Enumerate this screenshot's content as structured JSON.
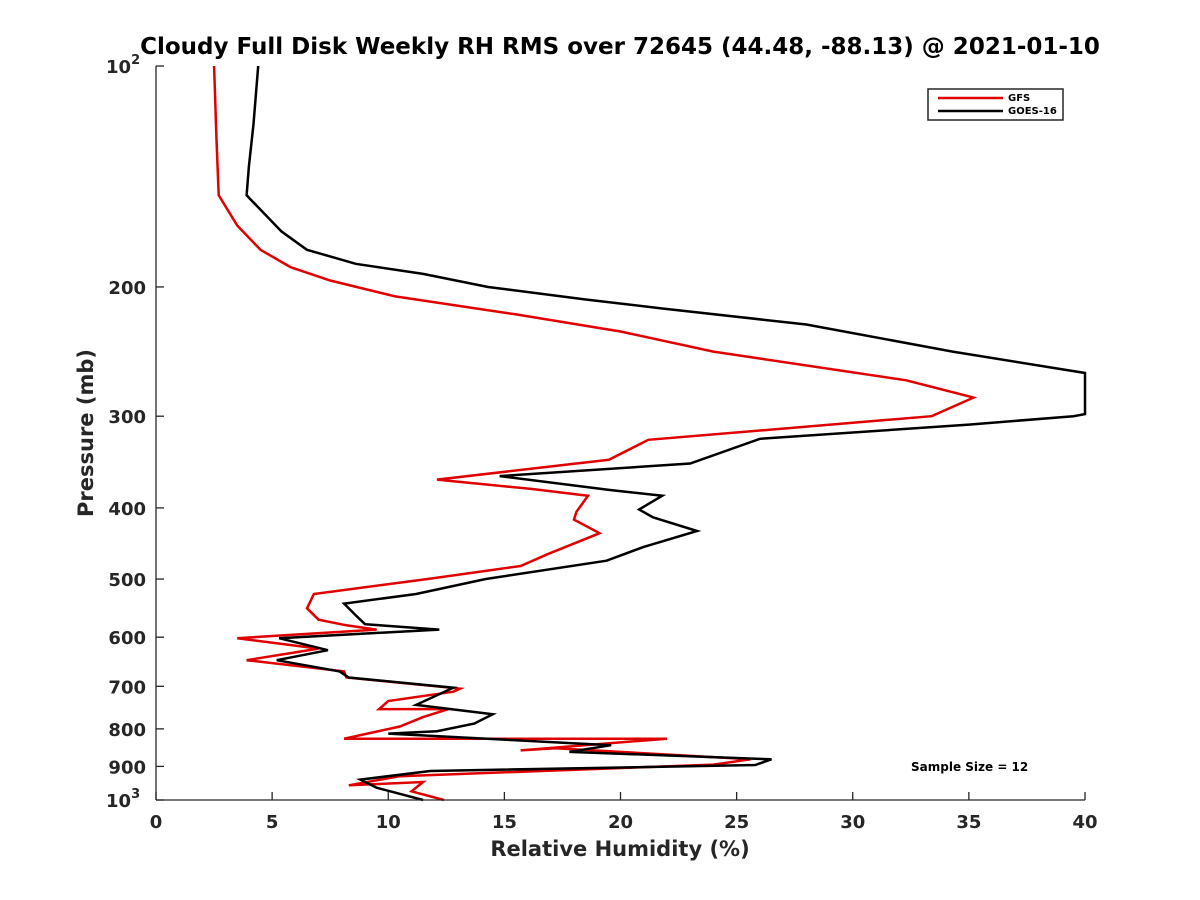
{
  "chart_data": {
    "type": "line",
    "title": "Cloudy Full Disk Weekly RH RMS over 72645 (44.48, -88.13) @ 2021-01-10",
    "xlabel": "Relative Humidity (%)",
    "ylabel": "Pressure (mb)",
    "xlim": [
      0,
      40
    ],
    "ylim": [
      100,
      1000
    ],
    "y_scale": "log",
    "y_reversed": true,
    "grid": false,
    "legend_position": "top-right",
    "x_ticks": [
      "0",
      "5",
      "10",
      "15",
      "20",
      "25",
      "30",
      "35",
      "40"
    ],
    "y_ticks": [
      {
        "value": 100,
        "base": "10",
        "exp": "2"
      },
      {
        "value": 200,
        "label": "200"
      },
      {
        "value": 300,
        "label": "300"
      },
      {
        "value": 400,
        "label": "400"
      },
      {
        "value": 500,
        "label": "500"
      },
      {
        "value": 600,
        "label": "600"
      },
      {
        "value": 700,
        "label": "700"
      },
      {
        "value": 800,
        "label": "800"
      },
      {
        "value": 900,
        "label": "900"
      },
      {
        "value": 1000,
        "base": "10",
        "exp": "3"
      }
    ],
    "annotation": "Sample Size = 12",
    "series": [
      {
        "name": "GFS",
        "color": "#e00000",
        "points": [
          [
            2.5,
            100
          ],
          [
            2.6,
            125
          ],
          [
            2.7,
            150
          ],
          [
            3.5,
            165
          ],
          [
            4.5,
            178
          ],
          [
            5.8,
            188
          ],
          [
            7.5,
            196
          ],
          [
            10.3,
            206
          ],
          [
            15.5,
            218
          ],
          [
            20.0,
            230
          ],
          [
            24.0,
            245
          ],
          [
            32.3,
            268
          ],
          [
            35.2,
            283
          ],
          [
            33.4,
            300
          ],
          [
            21.2,
            323
          ],
          [
            19.5,
            344
          ],
          [
            12.1,
            366
          ],
          [
            16.2,
            377
          ],
          [
            18.6,
            385
          ],
          [
            18.1,
            405
          ],
          [
            18.0,
            415
          ],
          [
            19.1,
            433
          ],
          [
            16.9,
            462
          ],
          [
            15.7,
            480
          ],
          [
            11.7,
            500
          ],
          [
            6.8,
            524
          ],
          [
            6.5,
            548
          ],
          [
            7.0,
            568
          ],
          [
            8.2,
            578
          ],
          [
            9.5,
            586
          ],
          [
            3.5,
            602
          ],
          [
            7.0,
            622
          ],
          [
            3.9,
            645
          ],
          [
            8.1,
            668
          ],
          [
            8.2,
            681
          ],
          [
            13.1,
            705
          ],
          [
            12.8,
            712
          ],
          [
            10.0,
            733
          ],
          [
            9.6,
            752
          ],
          [
            12.6,
            752
          ],
          [
            11.5,
            771
          ],
          [
            10.5,
            794
          ],
          [
            8.1,
            825
          ],
          [
            22.0,
            825
          ],
          [
            15.7,
            856
          ],
          [
            17.2,
            850
          ],
          [
            25.6,
            880
          ],
          [
            24.0,
            895
          ],
          [
            10.5,
            928
          ],
          [
            8.3,
            955
          ],
          [
            11.5,
            945
          ],
          [
            11.0,
            973
          ],
          [
            12.4,
            1000
          ]
        ]
      },
      {
        "name": "GOES-16",
        "color": "#000000",
        "points": [
          [
            4.4,
            100
          ],
          [
            4.2,
            120
          ],
          [
            4.0,
            137
          ],
          [
            3.9,
            150
          ],
          [
            5.4,
            168
          ],
          [
            6.5,
            178
          ],
          [
            8.6,
            186
          ],
          [
            11.5,
            192
          ],
          [
            14.3,
            200
          ],
          [
            18.5,
            208
          ],
          [
            21.8,
            214
          ],
          [
            28.0,
            225
          ],
          [
            34.3,
            245
          ],
          [
            40.0,
            262
          ],
          [
            40.0,
            298
          ],
          [
            39.5,
            300
          ],
          [
            35.0,
            308
          ],
          [
            26.0,
            322
          ],
          [
            23.0,
            348
          ],
          [
            14.8,
            362
          ],
          [
            19.5,
            378
          ],
          [
            21.8,
            385
          ],
          [
            20.8,
            402
          ],
          [
            21.4,
            412
          ],
          [
            23.3,
            430
          ],
          [
            21.0,
            452
          ],
          [
            19.4,
            472
          ],
          [
            14.2,
            500
          ],
          [
            11.2,
            524
          ],
          [
            8.1,
            540
          ],
          [
            8.6,
            560
          ],
          [
            9.0,
            576
          ],
          [
            12.2,
            586
          ],
          [
            5.3,
            602
          ],
          [
            7.4,
            625
          ],
          [
            5.2,
            645
          ],
          [
            7.9,
            668
          ],
          [
            8.3,
            681
          ],
          [
            12.8,
            703
          ],
          [
            11.2,
            742
          ],
          [
            14.5,
            764
          ],
          [
            13.7,
            787
          ],
          [
            12.1,
            806
          ],
          [
            10.0,
            812
          ],
          [
            19.6,
            842
          ],
          [
            17.8,
            860
          ],
          [
            26.5,
            880
          ],
          [
            25.8,
            896
          ],
          [
            11.8,
            913
          ],
          [
            8.8,
            938
          ],
          [
            9.5,
            962
          ],
          [
            11.5,
            1000
          ]
        ]
      }
    ]
  }
}
